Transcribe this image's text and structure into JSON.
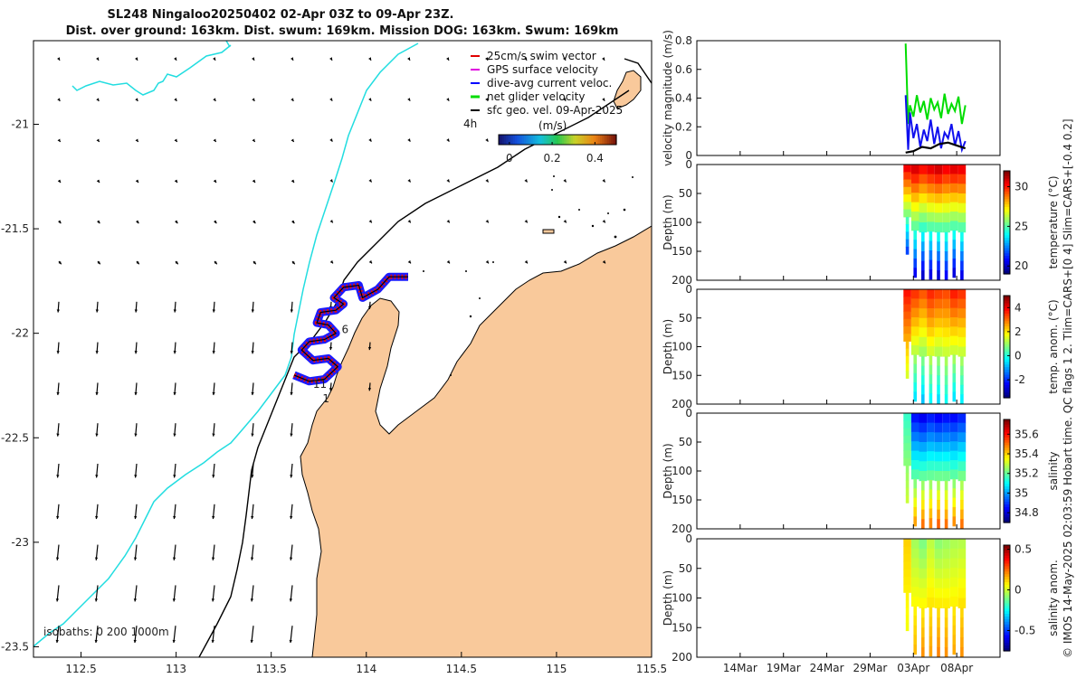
{
  "title": {
    "line1": "SL248 Ningaloo20250402 02-Apr 03Z to 09-Apr 23Z.",
    "line2": "Dist. over ground: 163km. Dist. swum: 169km. Mission DOG: 163km. Swum: 169km"
  },
  "map": {
    "xlim": [
      112.25,
      115.5
    ],
    "ylim": [
      -23.55,
      -20.6
    ],
    "xticks": [
      112.5,
      113,
      113.5,
      114,
      114.5,
      115,
      115.5
    ],
    "xtick_labels": [
      "112.5",
      "113",
      "113.5",
      "114",
      "114.5",
      "115",
      "115.5"
    ],
    "yticks": [
      -21,
      -21.5,
      -22,
      -22.5,
      -23,
      -23.5
    ],
    "ytick_labels": [
      "-21",
      "-21.5",
      "-22",
      "-22.5",
      "-23",
      "-23.5"
    ],
    "isobath_text": "isobaths: 0   200  1000m",
    "legend": [
      {
        "label": "25cm/s swim vector",
        "color": "#e00000"
      },
      {
        "label": "GPS surface velocity",
        "color": "#e000e0"
      },
      {
        "label": "dive-avg current veloc.",
        "color": "#0000ff"
      },
      {
        "label": "net glider velocity",
        "color": "#00dd00"
      },
      {
        "label": "sfc geo. vel. 09-Apr-2025",
        "color": "#000000"
      }
    ],
    "scale_label": "4h",
    "colorbar_title": "(m/s)",
    "colorbar_ticks": [
      "0",
      "0.2",
      "0.4"
    ],
    "colorbar_range": [
      -0.05,
      0.5
    ],
    "track_markers": [
      "6",
      "11",
      "1"
    ],
    "track_marker_positions": [
      [
        113.87,
        -22.0
      ],
      [
        113.72,
        -22.26
      ],
      [
        113.77,
        -22.33
      ]
    ],
    "track": [
      [
        113.62,
        -22.2
      ],
      [
        113.7,
        -22.23
      ],
      [
        113.78,
        -22.22
      ],
      [
        113.85,
        -22.16
      ],
      [
        113.8,
        -22.12
      ],
      [
        113.72,
        -22.13
      ],
      [
        113.66,
        -22.08
      ],
      [
        113.7,
        -22.04
      ],
      [
        113.78,
        -22.03
      ],
      [
        113.84,
        -22.0
      ],
      [
        113.8,
        -21.96
      ],
      [
        113.74,
        -21.95
      ],
      [
        113.76,
        -21.9
      ],
      [
        113.84,
        -21.89
      ],
      [
        113.88,
        -21.86
      ],
      [
        113.83,
        -21.83
      ],
      [
        113.88,
        -21.78
      ],
      [
        113.96,
        -21.77
      ],
      [
        113.98,
        -21.83
      ],
      [
        114.06,
        -21.79
      ],
      [
        114.12,
        -21.73
      ],
      [
        114.22,
        -21.73
      ]
    ]
  },
  "chart_data": [
    {
      "type": "line",
      "title": "",
      "ylabel": "velocity magnitude (m/s)",
      "ylim": [
        0,
        0.8
      ],
      "yticks": [
        0,
        0.2,
        0.4,
        0.6,
        0.8
      ],
      "ytick_labels": [
        "0",
        "0.2",
        "0.4",
        "0.6",
        "0.8"
      ],
      "xlim": [
        9,
        44
      ],
      "xticks": [
        14,
        19,
        24,
        29,
        34,
        39
      ],
      "xtick_labels": [
        "14Mar",
        "19Mar",
        "24Mar",
        "29Mar",
        "03Apr",
        "08Apr"
      ],
      "series": [
        {
          "name": "net glider velocity",
          "color": "#00dd00",
          "x": [
            33.1,
            33.4,
            33.6,
            34.0,
            34.4,
            34.8,
            35.2,
            35.6,
            36.0,
            36.4,
            36.8,
            37.2,
            37.6,
            38.0,
            38.4,
            38.8,
            39.2,
            39.6,
            40.0
          ],
          "values": [
            0.78,
            0.22,
            0.35,
            0.27,
            0.42,
            0.3,
            0.38,
            0.25,
            0.4,
            0.32,
            0.37,
            0.26,
            0.43,
            0.29,
            0.36,
            0.31,
            0.41,
            0.22,
            0.35
          ]
        },
        {
          "name": "dive-avg current veloc.",
          "color": "#1010ee",
          "x": [
            33.1,
            33.4,
            33.6,
            34.0,
            34.4,
            34.8,
            35.2,
            35.6,
            36.0,
            36.4,
            36.8,
            37.2,
            37.6,
            38.0,
            38.4,
            38.8,
            39.2,
            39.6,
            40.0
          ],
          "values": [
            0.42,
            0.04,
            0.3,
            0.12,
            0.22,
            0.06,
            0.18,
            0.1,
            0.25,
            0.08,
            0.2,
            0.05,
            0.16,
            0.12,
            0.22,
            0.07,
            0.17,
            0.04,
            0.1
          ]
        },
        {
          "name": "sfc geo. vel.",
          "color": "#000000",
          "x": [
            33.1,
            34.0,
            35.0,
            36.0,
            37.0,
            38.0,
            39.0,
            40.0
          ],
          "values": [
            0.02,
            0.03,
            0.06,
            0.05,
            0.08,
            0.09,
            0.07,
            0.05
          ]
        }
      ]
    },
    {
      "type": "heatmap",
      "ylabel": "Depth (m)",
      "colorbar_label": "temperature (°C)",
      "clim": [
        19,
        32
      ],
      "colorbar_ticks": [
        20,
        25,
        30
      ],
      "ylim": [
        0,
        200
      ],
      "yticks": [
        0,
        50,
        100,
        150,
        200
      ],
      "ytick_labels": [
        "0",
        "50",
        "100",
        "150",
        "200"
      ],
      "x": [
        33.3,
        34.2,
        35.1,
        36.0,
        36.9,
        37.8,
        38.7,
        39.6
      ],
      "max_depth": [
        155,
        195,
        200,
        198,
        200,
        200,
        195,
        200
      ],
      "surface_values": [
        30.5,
        30.8,
        30.2,
        30.6,
        30.9,
        30.4,
        30.7,
        30.5
      ],
      "bottom_values": [
        21.5,
        20.5,
        20.0,
        20.3,
        20.1,
        20.6,
        20.2,
        20.4
      ]
    },
    {
      "type": "heatmap",
      "ylabel": "Depth (m)",
      "colorbar_label": "temp. anom. (°C)",
      "clim": [
        -3.5,
        5
      ],
      "colorbar_ticks": [
        -2,
        0,
        2,
        4
      ],
      "ylim": [
        0,
        200
      ],
      "yticks": [
        0,
        50,
        100,
        150,
        200
      ],
      "ytick_labels": [
        "0",
        "50",
        "100",
        "150",
        "200"
      ],
      "x": [
        33.3,
        34.2,
        35.1,
        36.0,
        36.9,
        37.8,
        38.7,
        39.6
      ],
      "max_depth": [
        155,
        195,
        200,
        198,
        200,
        200,
        195,
        200
      ],
      "surface_values": [
        3.8,
        3.5,
        3.2,
        3.6,
        3.4,
        3.3,
        3.7,
        3.5
      ],
      "bottom_values": [
        1.5,
        -0.5,
        -0.8,
        -0.3,
        -0.6,
        -0.2,
        -0.5,
        -0.4
      ]
    },
    {
      "type": "heatmap",
      "ylabel": "Depth (m)",
      "colorbar_label": "salinity",
      "clim": [
        34.7,
        35.75
      ],
      "colorbar_ticks": [
        34.8,
        35,
        35.2,
        35.4,
        35.6
      ],
      "ylim": [
        0,
        200
      ],
      "yticks": [
        0,
        50,
        100,
        150,
        200
      ],
      "ytick_labels": [
        "0",
        "50",
        "100",
        "150",
        "200"
      ],
      "x": [
        33.3,
        34.2,
        35.1,
        36.0,
        36.9,
        37.8,
        38.7,
        39.6
      ],
      "max_depth": [
        155,
        195,
        200,
        198,
        200,
        200,
        195,
        200
      ],
      "surface_values": [
        35.15,
        34.85,
        34.82,
        34.86,
        34.83,
        34.85,
        34.84,
        34.87
      ],
      "bottom_values": [
        35.3,
        35.45,
        35.5,
        35.48,
        35.52,
        35.5,
        35.47,
        35.5
      ]
    },
    {
      "type": "heatmap",
      "ylabel": "Depth (m)",
      "colorbar_label": "salinity anom.",
      "clim": [
        -0.75,
        0.55
      ],
      "colorbar_ticks": [
        -0.5,
        0,
        0.5
      ],
      "ylim": [
        0,
        200
      ],
      "yticks": [
        0,
        50,
        100,
        150,
        200
      ],
      "ytick_labels": [
        "0",
        "50",
        "100",
        "150",
        "200"
      ],
      "x": [
        33.3,
        34.2,
        35.1,
        36.0,
        36.9,
        37.8,
        38.7,
        39.6
      ],
      "max_depth": [
        155,
        195,
        200,
        198,
        200,
        200,
        195,
        200
      ],
      "surface_values": [
        0.12,
        -0.05,
        -0.1,
        -0.02,
        -0.08,
        -0.06,
        -0.04,
        -0.03
      ],
      "bottom_values": [
        0.05,
        0.15,
        0.2,
        0.18,
        0.22,
        0.2,
        0.17,
        0.2
      ]
    }
  ],
  "side_caption": "© IMOS 14-May-2025 02:03:59 Hobart time. QC flags 1  2. Tlim=CARS+[0 4] Slim=CARS+[-0.4 0.2]"
}
